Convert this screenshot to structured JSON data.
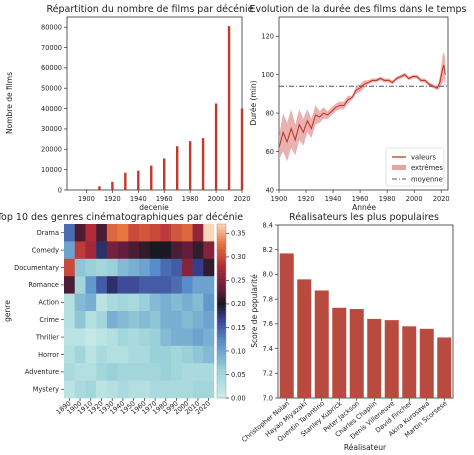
{
  "chart_data": [
    {
      "type": "bar",
      "title": "Répartition du nombre de films par décénie",
      "xlabel": "decenie",
      "ylabel": "Nombre de films",
      "categories": [
        1890,
        1900,
        1910,
        1920,
        1930,
        1940,
        1950,
        1960,
        1970,
        1980,
        1990,
        2000,
        2010,
        2020
      ],
      "values": [
        50,
        300,
        1800,
        4000,
        8500,
        9500,
        12000,
        15500,
        21500,
        24000,
        25500,
        42500,
        80500,
        40000
      ],
      "ylim": [
        0,
        85000
      ],
      "xlim": [
        1885,
        2020
      ],
      "xticks": [
        1900,
        1920,
        1940,
        1960,
        1980,
        2000,
        2020
      ],
      "yticks": [
        0,
        10000,
        20000,
        30000,
        40000,
        50000,
        60000,
        70000,
        80000
      ],
      "bar_color": "#c0392b",
      "grid": false
    },
    {
      "type": "line",
      "title": "Evolution de la durée des films dans le temps",
      "xlabel": "Année",
      "ylabel": "Durée (min)",
      "xlim": [
        1900,
        2025
      ],
      "ylim": [
        40,
        130
      ],
      "xticks": [
        1900,
        1920,
        1940,
        1960,
        1980,
        2000,
        2020
      ],
      "yticks": [
        40,
        60,
        80,
        100,
        120
      ],
      "legend": {
        "placement": "bottom-right",
        "entries": [
          "valeurs",
          "extrêmes",
          "moyenne"
        ]
      },
      "mean_value": 94,
      "series": [
        {
          "name": "valeurs",
          "color": "#c0392b",
          "x": [
            1900,
            1903,
            1906,
            1909,
            1912,
            1915,
            1918,
            1921,
            1924,
            1927,
            1930,
            1933,
            1936,
            1939,
            1942,
            1945,
            1948,
            1951,
            1954,
            1957,
            1960,
            1963,
            1966,
            1969,
            1972,
            1975,
            1978,
            1981,
            1984,
            1987,
            1990,
            1993,
            1996,
            1999,
            2002,
            2005,
            2008,
            2011,
            2014,
            2017,
            2019,
            2021,
            2022,
            2023
          ],
          "values": [
            62,
            70,
            65,
            72,
            66,
            74,
            70,
            76,
            72,
            79,
            78,
            80,
            79,
            81,
            83,
            84,
            84,
            87,
            88,
            92,
            93,
            95,
            96,
            97,
            97,
            98,
            97,
            97,
            96,
            98,
            99,
            100,
            98,
            99,
            99,
            97,
            97,
            95,
            94,
            93,
            96,
            103,
            105,
            100
          ]
        },
        {
          "name": "extrêmes",
          "color": "#e7a3a3",
          "x": [
            1900,
            1903,
            1906,
            1909,
            1912,
            1915,
            1918,
            1921,
            1924,
            1927,
            1930,
            1933,
            1936,
            1939,
            1942,
            1945,
            1948,
            1951,
            1954,
            1957,
            1960,
            1963,
            1966,
            1969,
            1972,
            1975,
            1978,
            1981,
            1984,
            1987,
            1990,
            1993,
            1996,
            1999,
            2002,
            2005,
            2008,
            2011,
            2014,
            2017,
            2019,
            2021,
            2022,
            2023
          ],
          "low": [
            56,
            60,
            55,
            62,
            58,
            66,
            63,
            70,
            67,
            74,
            75,
            77,
            77,
            79,
            81,
            82,
            82,
            85,
            87,
            90,
            91,
            93,
            95,
            96,
            96,
            97,
            96,
            96,
            95,
            97,
            98,
            99,
            97,
            98,
            98,
            96,
            96,
            94,
            93,
            92,
            93,
            96,
            98,
            92
          ],
          "high": [
            68,
            80,
            75,
            82,
            74,
            82,
            77,
            82,
            77,
            84,
            81,
            83,
            81,
            83,
            85,
            86,
            86,
            89,
            89,
            94,
            95,
            97,
            97,
            98,
            98,
            99,
            98,
            98,
            97,
            99,
            100,
            101,
            99,
            100,
            100,
            98,
            98,
            96,
            95,
            94,
            99,
            110,
            112,
            108
          ]
        }
      ]
    },
    {
      "type": "heatmap",
      "title": "Top 10 des genres cinématographiques par décénie",
      "ylabel": "genre",
      "colormap": "icefire",
      "rows": [
        "Drama",
        "Comedy",
        "Documentary",
        "Romance",
        "Action",
        "Crime",
        "Thriller",
        "Horror",
        "Adventure",
        "Mystery"
      ],
      "columns": [
        "1890",
        "1900",
        "1910",
        "1920",
        "1930",
        "1940",
        "1950",
        "1960",
        "1970",
        "1980",
        "1990",
        "2000",
        "2010",
        "2020"
      ],
      "values": [
        [
          0.14,
          0.22,
          0.28,
          0.22,
          0.32,
          0.33,
          0.3,
          0.31,
          0.3,
          0.29,
          0.31,
          0.32,
          0.26,
          0.37
        ],
        [
          0.1,
          0.29,
          0.27,
          0.18,
          0.24,
          0.23,
          0.22,
          0.21,
          0.2,
          0.2,
          0.22,
          0.23,
          0.21,
          0.25
        ],
        [
          0.3,
          0.07,
          0.06,
          0.05,
          0.06,
          0.08,
          0.09,
          0.1,
          0.12,
          0.14,
          0.15,
          0.25,
          0.17,
          0.21
        ],
        [
          0.22,
          0.05,
          0.11,
          0.15,
          0.18,
          0.16,
          0.16,
          0.15,
          0.15,
          0.15,
          0.14,
          0.12,
          0.1,
          0.1
        ],
        [
          0.03,
          0.08,
          0.09,
          0.02,
          0.04,
          0.05,
          0.04,
          0.06,
          0.08,
          0.09,
          0.08,
          0.09,
          0.08,
          0.11
        ],
        [
          0.03,
          0.07,
          0.03,
          0.05,
          0.09,
          0.08,
          0.07,
          0.08,
          0.07,
          0.09,
          0.09,
          0.08,
          0.09,
          0.1
        ],
        [
          0.02,
          0.02,
          0.01,
          0.02,
          0.03,
          0.05,
          0.04,
          0.05,
          0.06,
          0.08,
          0.09,
          0.09,
          0.1,
          0.09
        ],
        [
          0.03,
          0.05,
          0.02,
          0.04,
          0.03,
          0.03,
          0.04,
          0.04,
          0.06,
          0.06,
          0.05,
          0.06,
          0.07,
          0.08
        ],
        [
          0.04,
          0.03,
          0.03,
          0.05,
          0.06,
          0.05,
          0.05,
          0.05,
          0.05,
          0.06,
          0.05,
          0.04,
          0.04,
          0.04
        ],
        [
          0.02,
          0.04,
          0.05,
          0.02,
          0.03,
          0.04,
          0.03,
          0.03,
          0.04,
          0.04,
          0.04,
          0.04,
          0.05,
          0.05
        ]
      ],
      "colorbar_range": [
        0.0,
        0.37
      ],
      "colorbar_ticks": [
        "0.00",
        "0.05",
        "0.10",
        "0.15",
        "0.20",
        "0.25",
        "0.30",
        "0.35"
      ]
    },
    {
      "type": "bar",
      "title": "Réalisateurs les plus populaires",
      "xlabel": "Réalisateur",
      "ylabel": "Score de popularité",
      "categories": [
        "Christopher Nolan",
        "Hayao Miyazaki",
        "Quentin Tarantino",
        "Stanley Kubrick",
        "Peter Jackson",
        "Charles Chaplin",
        "Denis Villeneuve",
        "David Fincher",
        "Akira Kurosawa",
        "Martin Scorsese"
      ],
      "values": [
        8.17,
        7.96,
        7.87,
        7.73,
        7.72,
        7.64,
        7.63,
        7.58,
        7.56,
        7.49
      ],
      "ylim": [
        7.0,
        8.4
      ],
      "yticks": [
        "7.0",
        "7.2",
        "7.4",
        "7.6",
        "7.8",
        "8.0",
        "8.2",
        "8.4"
      ],
      "bar_color": "#b94a40",
      "grid": false
    }
  ]
}
